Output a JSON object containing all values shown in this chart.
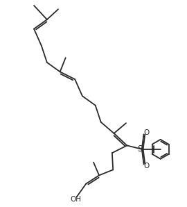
{
  "bg_color": "#ffffff",
  "line_color": "#2a2a2a",
  "line_width": 1.3,
  "figsize": [
    2.7,
    2.98
  ],
  "dpi": 100,
  "xlim": [
    0,
    10
  ],
  "ylim": [
    0,
    11
  ]
}
